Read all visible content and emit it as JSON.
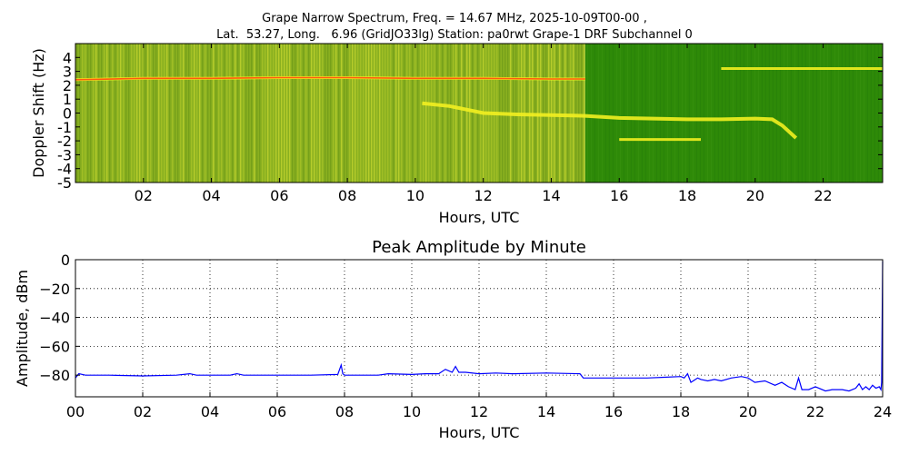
{
  "figure": {
    "title_line1": "Grape Narrow Spectrum, Freq. = 14.67 MHz, 2025-10-09T00-00 ,",
    "title_line2": "Lat.  53.27, Long.   6.96 (GridJO33lg) Station: pa0rwt Grape-1 DRF Subchannel 0"
  },
  "chart_data": [
    {
      "type": "heatmap",
      "title": "",
      "xlabel": "Hours, UTC",
      "ylabel": "Doppler Shift (Hz)",
      "xlim": [
        0,
        23.75
      ],
      "ylim": [
        -5,
        5
      ],
      "x_ticks": [
        2,
        4,
        6,
        8,
        10,
        12,
        14,
        16,
        18,
        20,
        22
      ],
      "x_tick_labels": [
        "02",
        "04",
        "06",
        "08",
        "10",
        "12",
        "14",
        "16",
        "18",
        "20",
        "22"
      ],
      "y_ticks": [
        -5,
        -4,
        -3,
        -2,
        -1,
        0,
        1,
        2,
        3,
        4
      ],
      "y_tick_labels": [
        "-5",
        "-4",
        "-3",
        "-2",
        "-1",
        "0",
        "1",
        "2",
        "3",
        "4"
      ],
      "grid": false,
      "colors": {
        "background_before": "#8ab020",
        "background_after": "#2e8a08",
        "trace": "#f2f020",
        "strong_trace": "#ff5a10"
      },
      "regime_change_hour": 15.0,
      "traces": [
        {
          "x": [
            0.0,
            2.0,
            4.0,
            6.0,
            8.0,
            10.0,
            12.0,
            14.0,
            15.0
          ],
          "y": [
            2.4,
            2.5,
            2.5,
            2.55,
            2.55,
            2.5,
            2.5,
            2.45,
            2.45
          ]
        },
        {
          "x": [
            10.2,
            11.0,
            12.0,
            13.0,
            14.0,
            15.0,
            16.0,
            17.0,
            18.0,
            19.0,
            20.0,
            20.5,
            20.8,
            21.2
          ],
          "y": [
            0.7,
            0.5,
            0.0,
            -0.1,
            -0.15,
            -0.2,
            -0.35,
            -0.4,
            -0.45,
            -0.45,
            -0.4,
            -0.45,
            -0.9,
            -1.8
          ]
        },
        {
          "x": [
            16.0,
            17.0,
            18.0,
            18.4
          ],
          "y": [
            -1.9,
            -1.9,
            -1.9,
            -1.9
          ]
        },
        {
          "x": [
            19.0,
            20.0,
            21.0,
            22.0,
            23.75
          ],
          "y": [
            3.2,
            3.2,
            3.2,
            3.2,
            3.2
          ]
        }
      ]
    },
    {
      "type": "line",
      "title": "Peak Amplitude by Minute",
      "xlabel": "Hours, UTC",
      "ylabel": "Amplitude, dBm",
      "xlim": [
        0,
        24
      ],
      "ylim": [
        -95,
        0
      ],
      "x_ticks": [
        0,
        2,
        4,
        6,
        8,
        10,
        12,
        14,
        16,
        18,
        20,
        22,
        24
      ],
      "x_tick_labels": [
        "00",
        "02",
        "04",
        "06",
        "08",
        "10",
        "12",
        "14",
        "16",
        "18",
        "20",
        "22",
        "24"
      ],
      "y_ticks": [
        0,
        -20,
        -40,
        -60,
        -80
      ],
      "y_tick_labels": [
        "0",
        "−20",
        "−40",
        "−60",
        "−80"
      ],
      "grid": true,
      "series_color": "#0000ff",
      "series": [
        {
          "x": [
            0.0,
            0.1,
            0.3,
            1.0,
            2.0,
            3.0,
            3.4,
            3.6,
            4.0,
            4.6,
            4.8,
            5.0,
            6.0,
            7.0,
            7.8,
            7.9,
            7.95,
            8.0,
            8.2,
            8.6,
            9.0,
            9.3,
            10.0,
            10.4,
            10.8,
            11.0,
            11.2,
            11.3,
            11.4,
            11.6,
            12.0,
            12.5,
            13.0,
            14.0,
            15.0,
            15.1,
            16.0,
            17.0,
            17.5,
            18.0,
            18.1,
            18.2,
            18.3,
            18.5,
            18.6,
            18.8,
            19.0,
            19.2,
            19.5,
            19.8,
            20.0,
            20.2,
            20.5,
            20.8,
            21.0,
            21.2,
            21.4,
            21.5,
            21.6,
            21.8,
            22.0,
            22.3,
            22.5,
            22.8,
            23.0,
            23.2,
            23.3,
            23.4,
            23.5,
            23.6,
            23.7,
            23.8,
            23.9,
            23.95,
            23.97,
            24.0
          ],
          "values": [
            -82,
            -79,
            -80,
            -80,
            -80.5,
            -80,
            -79,
            -80,
            -80,
            -80,
            -79,
            -80,
            -80,
            -80,
            -79.5,
            -73,
            -79,
            -80,
            -80,
            -80,
            -80,
            -79,
            -79.5,
            -79,
            -79,
            -76,
            -78,
            -74,
            -78,
            -78,
            -79,
            -78.5,
            -79,
            -78.5,
            -79,
            -82,
            -82,
            -82,
            -81.5,
            -81,
            -82,
            -79,
            -85,
            -82,
            -83,
            -84,
            -83,
            -84,
            -82,
            -81,
            -82,
            -85,
            -84,
            -87,
            -85,
            -88,
            -90,
            -82,
            -90,
            -90,
            -88,
            -91,
            -90,
            -90,
            -91,
            -89,
            -86,
            -90,
            -88,
            -90,
            -87,
            -89,
            -88,
            -90,
            -85,
            -1
          ]
        }
      ]
    }
  ]
}
